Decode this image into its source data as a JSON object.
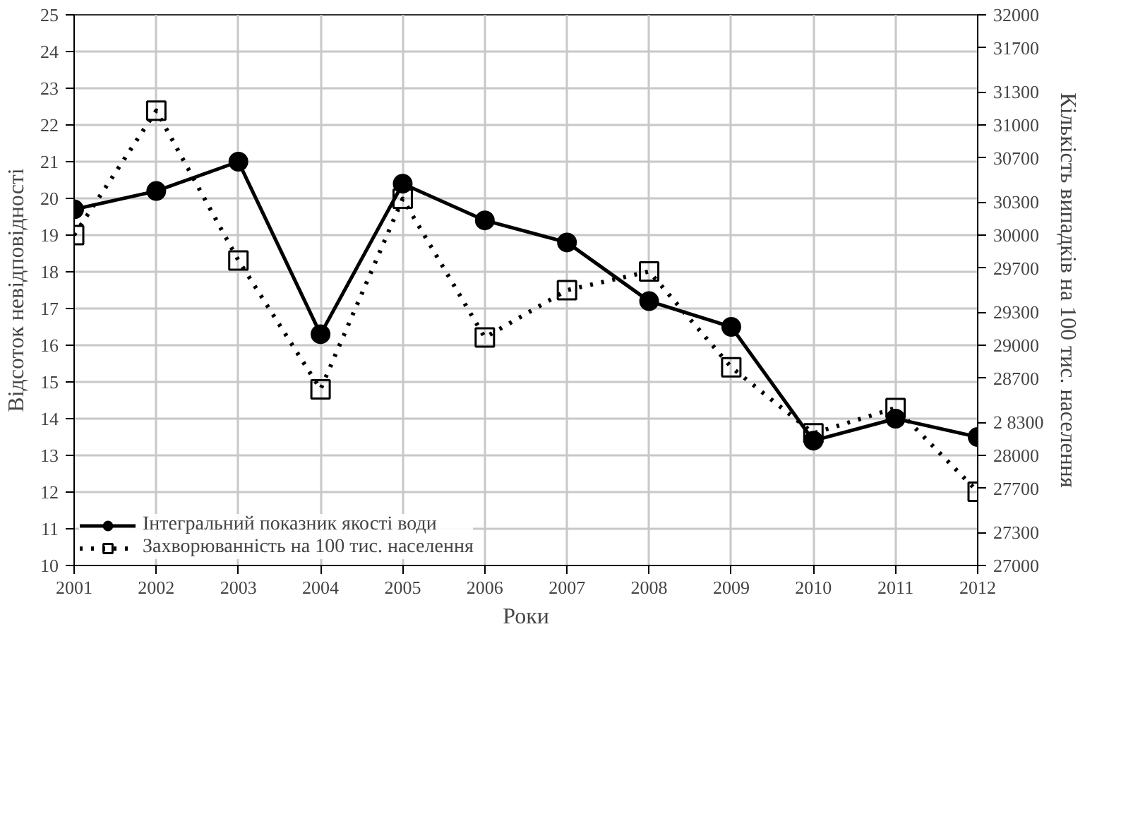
{
  "chart_data": {
    "type": "line",
    "xlabel": "Роки",
    "ylabel": "Відсоток невідповідності",
    "y2label": "Кількість випадків на 100 тис. населення",
    "x": [
      2001,
      2002,
      2003,
      2004,
      2005,
      2006,
      2007,
      2008,
      2009,
      2010,
      2011,
      2012
    ],
    "xlim": [
      2001,
      2012
    ],
    "xticks": [
      2001,
      2002,
      2003,
      2004,
      2005,
      2006,
      2007,
      2008,
      2009,
      2010,
      2011,
      2012
    ],
    "ylim": [
      10,
      25
    ],
    "yticks": [
      10,
      11,
      12,
      13,
      14,
      15,
      16,
      17,
      18,
      19,
      20,
      21,
      22,
      23,
      24,
      25
    ],
    "y2lim": [
      27000,
      32000
    ],
    "y2ticks": [
      27000,
      27300,
      27700,
      28000,
      {
        "value": 28300,
        "label": "2 8300"
      },
      28700,
      29000,
      29300,
      29700,
      30000,
      30300,
      30700,
      31000,
      31300,
      31700,
      32000
    ],
    "grid": true,
    "legend": "bottom left",
    "series": [
      {
        "name": "Інтегральний показник якості води",
        "color": "#000000",
        "marker": "circle",
        "line_style": "solid",
        "values": [
          19.7,
          20.2,
          21.0,
          16.3,
          20.4,
          19.4,
          18.8,
          17.2,
          16.5,
          13.4,
          14.0,
          13.5
        ]
      },
      {
        "name": "Захворюванність на 100 тис. населення",
        "color": "#000000",
        "marker": "square",
        "line_style": "dotted",
        "axis": "y2",
        "values": [
          30000,
          31130,
          29770,
          28600,
          30330,
          29070,
          29500,
          29670,
          28800,
          28200,
          28430,
          27670
        ]
      }
    ]
  }
}
